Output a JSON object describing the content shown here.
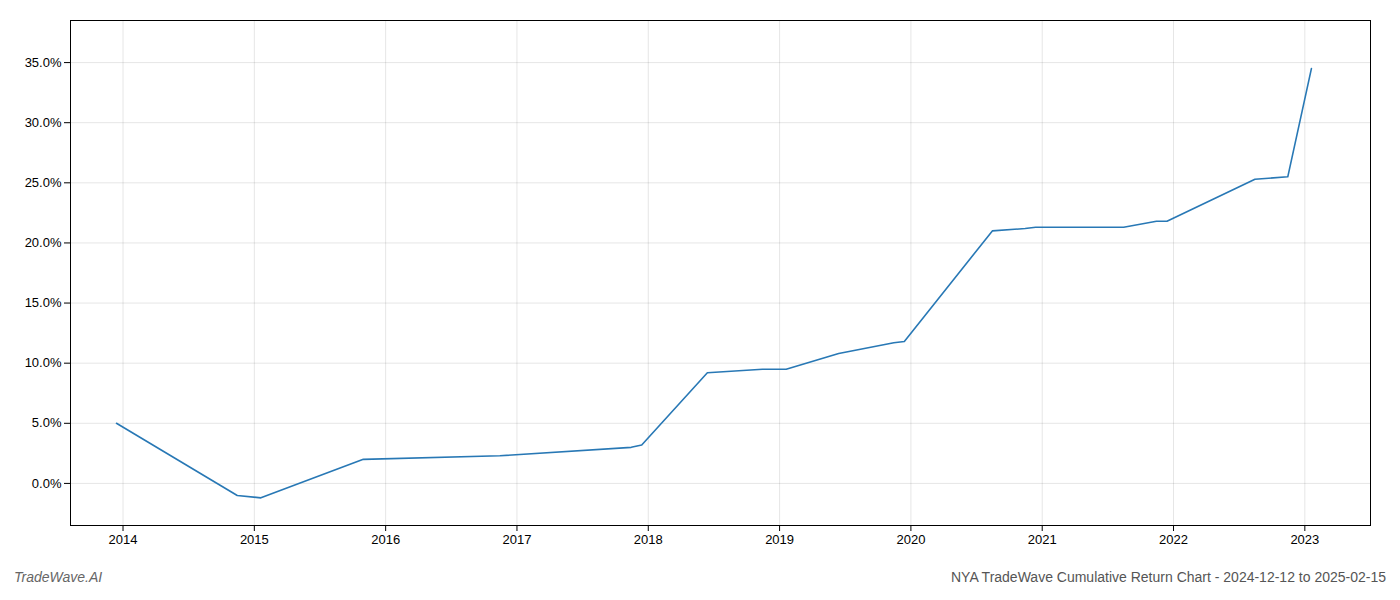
{
  "chart_data": {
    "type": "line",
    "title": "NYA TradeWave Cumulative Return Chart - 2024-12-12 to 2025-02-15",
    "annotations": [
      "TradeWave.AI"
    ],
    "x": [
      2013.95,
      2014.87,
      2015.05,
      2015.83,
      2016.87,
      2017.87,
      2017.95,
      2018.45,
      2018.87,
      2019.05,
      2019.45,
      2019.87,
      2019.95,
      2020.62,
      2020.87,
      2020.95,
      2021.62,
      2021.87,
      2021.95,
      2022.62,
      2022.87,
      2023.05
    ],
    "values": [
      0.05,
      -0.01,
      -0.012,
      0.02,
      0.023,
      0.03,
      0.032,
      0.092,
      0.095,
      0.095,
      0.108,
      0.117,
      0.118,
      0.21,
      0.212,
      0.213,
      0.213,
      0.218,
      0.218,
      0.253,
      0.255,
      0.345
    ],
    "color": "#2878b5",
    "xlim": [
      2013.6,
      2023.5
    ],
    "ylim": [
      -0.035,
      0.385
    ],
    "xticks": [
      2014,
      2015,
      2016,
      2017,
      2018,
      2019,
      2020,
      2021,
      2022,
      2023
    ],
    "yticks": [
      {
        "value": 0.0,
        "label": "0.0%"
      },
      {
        "value": 0.05,
        "label": "5.0%"
      },
      {
        "value": 0.1,
        "label": "10.0%"
      },
      {
        "value": 0.15,
        "label": "15.0%"
      },
      {
        "value": 0.2,
        "label": "20.0%"
      },
      {
        "value": 0.25,
        "label": "25.0%"
      },
      {
        "value": 0.3,
        "label": "30.0%"
      },
      {
        "value": 0.35,
        "label": "35.0%"
      }
    ],
    "grid": true
  }
}
